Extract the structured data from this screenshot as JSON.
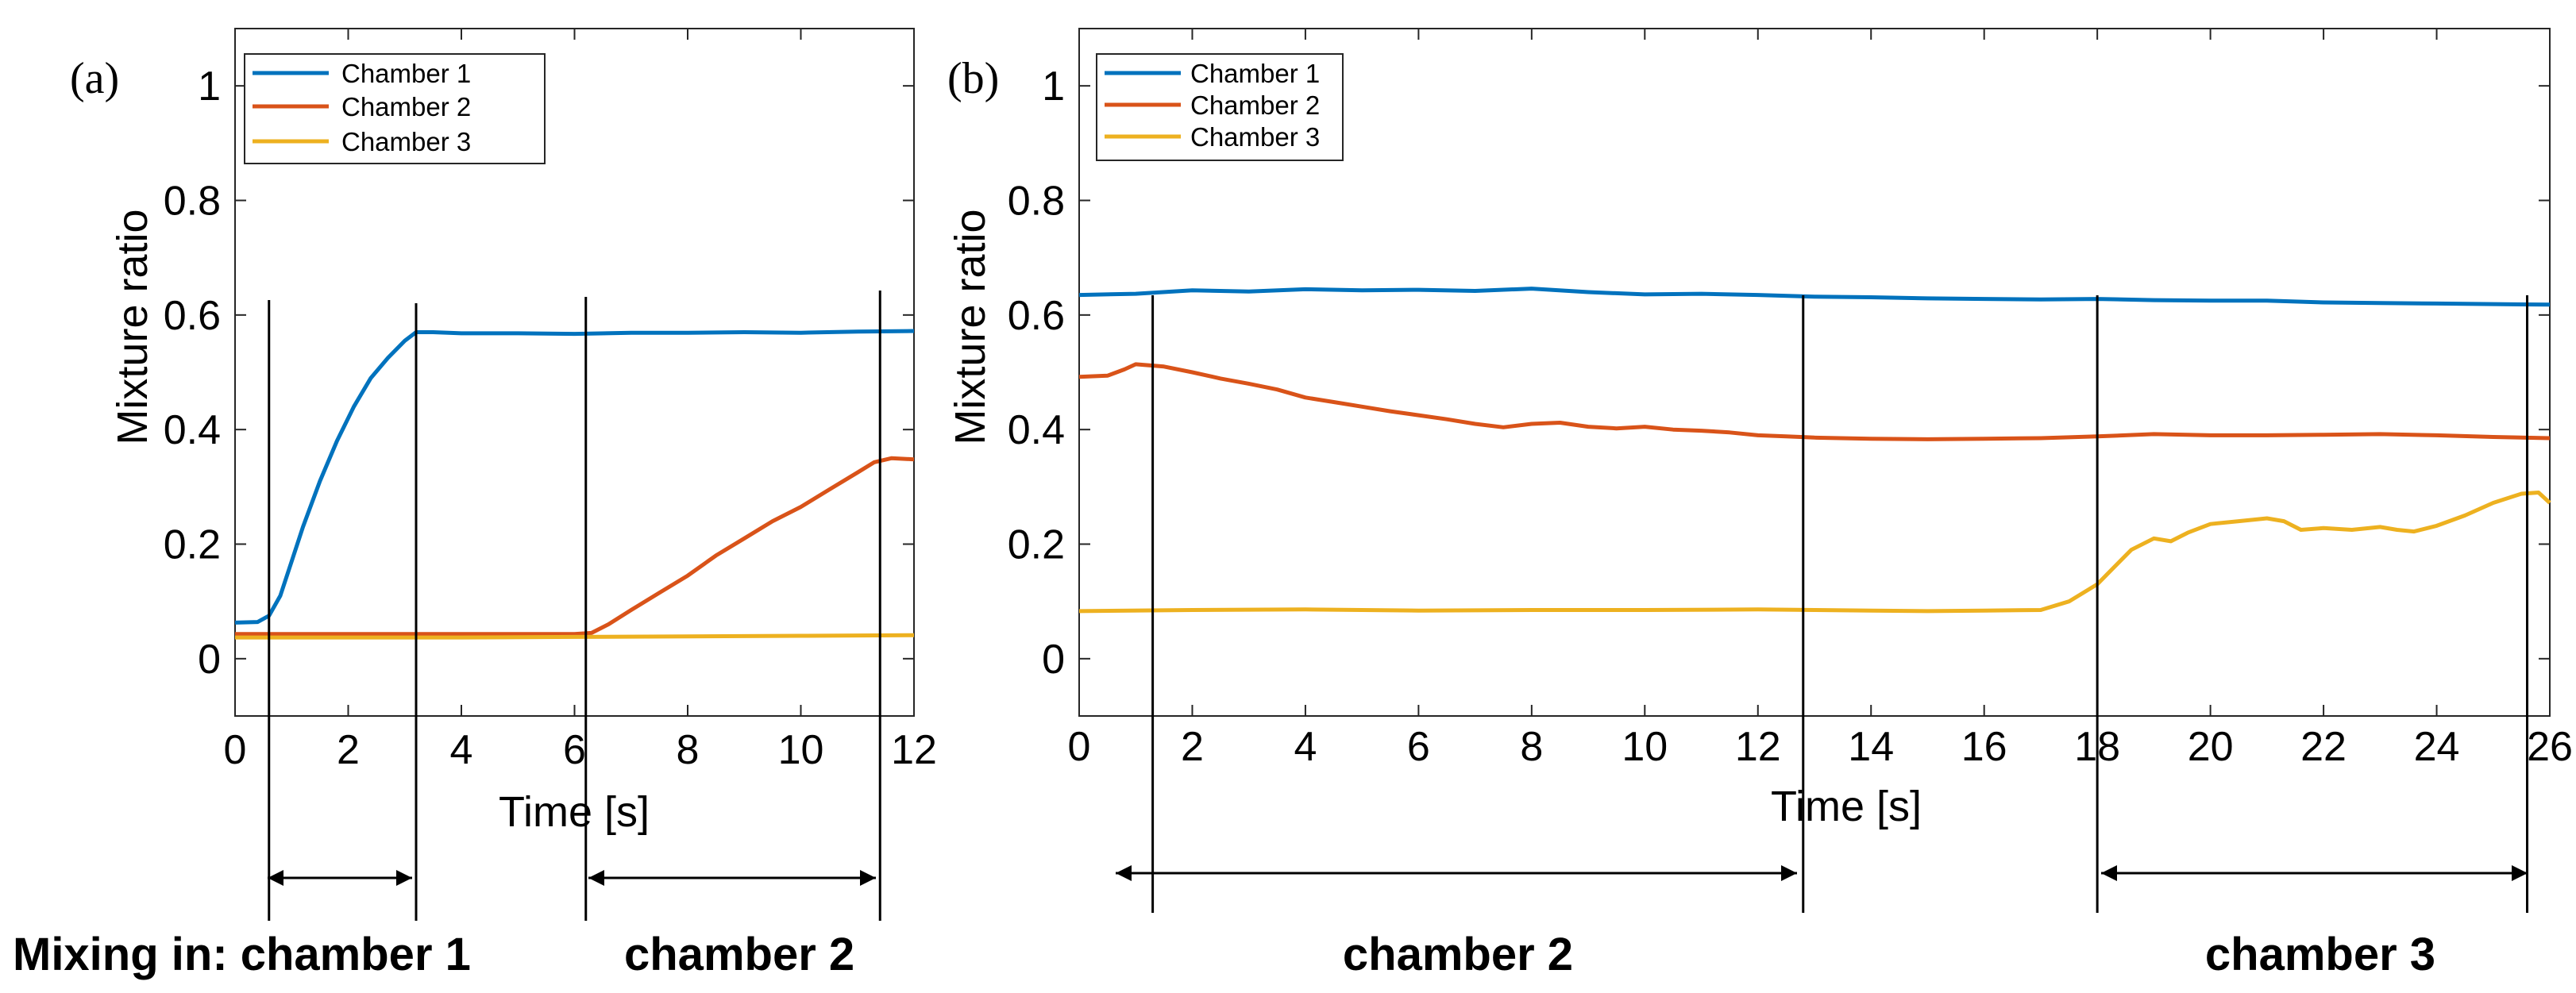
{
  "chart_data": [
    {
      "panel": "(a)",
      "type": "line",
      "xlabel": "Time [s]",
      "ylabel": "Mixture ratio",
      "xlim": [
        0,
        12
      ],
      "ylim": [
        -0.1,
        1.1
      ],
      "xticks": [
        0,
        2,
        4,
        6,
        8,
        10,
        12
      ],
      "xtick_labels": [
        "0",
        "2",
        "4",
        "6",
        "8",
        "10",
        "12"
      ],
      "yticks": [
        0,
        0.2,
        0.4,
        0.6,
        0.8,
        1
      ],
      "ytick_labels": [
        "0",
        "0.2",
        "0.4",
        "0.6",
        "0.8",
        "1"
      ],
      "legend": "top-left",
      "series": [
        {
          "name": "Chamber 1",
          "color": "#0072BD",
          "x": [
            0,
            0.4,
            0.6,
            0.8,
            1.0,
            1.2,
            1.5,
            1.8,
            2.1,
            2.4,
            2.7,
            3.0,
            3.2,
            3.5,
            4,
            5,
            6,
            7,
            8,
            9,
            10,
            11,
            12
          ],
          "y": [
            0.063,
            0.064,
            0.075,
            0.11,
            0.17,
            0.23,
            0.31,
            0.38,
            0.44,
            0.49,
            0.525,
            0.555,
            0.57,
            0.57,
            0.568,
            0.568,
            0.567,
            0.569,
            0.569,
            0.57,
            0.569,
            0.571,
            0.572
          ]
        },
        {
          "name": "Chamber 2",
          "color": "#D95319",
          "x": [
            0,
            1,
            2,
            3,
            4,
            5,
            6,
            6.3,
            6.6,
            7,
            7.5,
            8,
            8.5,
            9,
            9.5,
            10,
            10.5,
            11,
            11.3,
            11.6,
            12
          ],
          "y": [
            0.043,
            0.043,
            0.043,
            0.043,
            0.043,
            0.043,
            0.043,
            0.045,
            0.06,
            0.085,
            0.115,
            0.145,
            0.18,
            0.21,
            0.24,
            0.265,
            0.295,
            0.325,
            0.343,
            0.35,
            0.348
          ]
        },
        {
          "name": "Chamber 3",
          "color": "#EDB120",
          "x": [
            0,
            2,
            4,
            6,
            8,
            10,
            12
          ],
          "y": [
            0.037,
            0.037,
            0.037,
            0.038,
            0.039,
            0.04,
            0.041
          ]
        }
      ],
      "vlines": [
        0.6,
        3.2,
        6.2,
        11.4
      ],
      "bracket_labels": [
        "Mixing in: chamber 1",
        "chamber 2"
      ]
    },
    {
      "panel": "(b)",
      "type": "line",
      "xlabel": "Time [s]",
      "ylabel": "Mixture ratio",
      "xlim": [
        0,
        26
      ],
      "ylim": [
        -0.1,
        1.1
      ],
      "xticks": [
        0,
        2,
        4,
        6,
        8,
        10,
        12,
        14,
        16,
        18,
        20,
        22,
        24,
        26
      ],
      "xtick_labels": [
        "0",
        "2",
        "4",
        "6",
        "8",
        "10",
        "12",
        "14",
        "16",
        "18",
        "20",
        "22",
        "24",
        "26"
      ],
      "yticks": [
        0,
        0.2,
        0.4,
        0.6,
        0.8,
        1
      ],
      "ytick_labels": [
        "0",
        "0.2",
        "0.4",
        "0.6",
        "0.8",
        "1"
      ],
      "legend": "top-left",
      "series": [
        {
          "name": "Chamber 1",
          "color": "#0072BD",
          "x": [
            0,
            1,
            2,
            3,
            4,
            5,
            6,
            7,
            8,
            9,
            10,
            11,
            12,
            13,
            14,
            15,
            16,
            17,
            18,
            19,
            20,
            21,
            22,
            23,
            24,
            25,
            26
          ],
          "y": [
            0.635,
            0.637,
            0.643,
            0.641,
            0.645,
            0.643,
            0.644,
            0.642,
            0.646,
            0.64,
            0.636,
            0.637,
            0.635,
            0.632,
            0.631,
            0.629,
            0.628,
            0.627,
            0.628,
            0.626,
            0.625,
            0.625,
            0.622,
            0.621,
            0.62,
            0.619,
            0.618
          ]
        },
        {
          "name": "Chamber 2",
          "color": "#D95319",
          "x": [
            0,
            0.5,
            0.8,
            1.0,
            1.5,
            2,
            2.5,
            3,
            3.5,
            4,
            4.5,
            5,
            5.5,
            6,
            6.5,
            7,
            7.5,
            8,
            8.5,
            9,
            9.5,
            10,
            10.5,
            11,
            11.5,
            12,
            12.5,
            13,
            14,
            15,
            16,
            17,
            18,
            19,
            20,
            21,
            22,
            23,
            24,
            25,
            26
          ],
          "y": [
            0.492,
            0.494,
            0.505,
            0.514,
            0.51,
            0.5,
            0.489,
            0.48,
            0.47,
            0.456,
            0.448,
            0.44,
            0.432,
            0.425,
            0.418,
            0.41,
            0.404,
            0.41,
            0.412,
            0.405,
            0.402,
            0.405,
            0.4,
            0.398,
            0.395,
            0.39,
            0.388,
            0.386,
            0.384,
            0.383,
            0.384,
            0.385,
            0.388,
            0.392,
            0.39,
            0.39,
            0.391,
            0.392,
            0.39,
            0.387,
            0.385
          ]
        },
        {
          "name": "Chamber 3",
          "color": "#EDB120",
          "x": [
            0,
            2,
            4,
            6,
            8,
            10,
            12,
            13,
            14,
            15,
            16,
            17,
            17.5,
            18,
            18.3,
            18.6,
            19,
            19.3,
            19.6,
            20,
            20.5,
            21,
            21.3,
            21.6,
            22,
            22.5,
            23,
            23.3,
            23.6,
            24,
            24.5,
            25,
            25.5,
            25.8,
            26
          ],
          "y": [
            0.083,
            0.085,
            0.086,
            0.084,
            0.085,
            0.085,
            0.086,
            0.085,
            0.084,
            0.083,
            0.084,
            0.085,
            0.1,
            0.13,
            0.16,
            0.19,
            0.21,
            0.205,
            0.22,
            0.235,
            0.24,
            0.245,
            0.24,
            0.225,
            0.228,
            0.225,
            0.23,
            0.225,
            0.222,
            0.232,
            0.25,
            0.272,
            0.288,
            0.29,
            0.272
          ]
        }
      ],
      "vlines": [
        1.3,
        12.8,
        18,
        25.6
      ],
      "bracket_labels": [
        "chamber 2",
        "chamber 3"
      ]
    }
  ]
}
